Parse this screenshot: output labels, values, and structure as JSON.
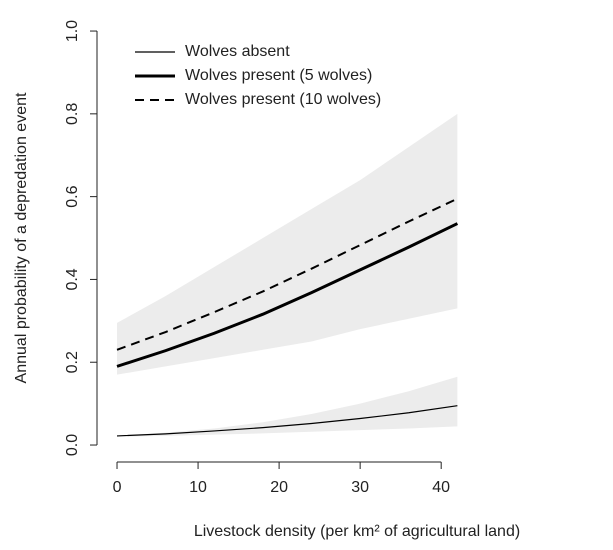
{
  "chart_data": {
    "type": "line",
    "xlabel": "Livestock density (per km² of agricultural land)",
    "ylabel": "Annual probability of a depredation event",
    "x": [
      0,
      6,
      12,
      18,
      24,
      30,
      36,
      42
    ],
    "series": [
      {
        "name": "Wolves absent",
        "color": "#000000",
        "width": 1.2,
        "dash": false,
        "values": [
          0.022,
          0.027,
          0.034,
          0.042,
          0.052,
          0.064,
          0.078,
          0.095
        ]
      },
      {
        "name": "Wolves present (5 wolves)",
        "color": "#000000",
        "width": 3,
        "dash": false,
        "values": [
          0.19,
          0.228,
          0.27,
          0.316,
          0.368,
          0.423,
          0.478,
          0.535
        ]
      },
      {
        "name": "Wolves present (10 wolves)",
        "color": "#000000",
        "width": 2,
        "dash": true,
        "values": [
          0.23,
          0.273,
          0.321,
          0.371,
          0.426,
          0.483,
          0.54,
          0.595
        ]
      }
    ],
    "bands": [
      {
        "color": "#ececec",
        "lower": [
          0.02,
          0.022,
          0.025,
          0.028,
          0.032,
          0.036,
          0.04,
          0.045
        ],
        "upper": [
          0.022,
          0.03,
          0.04,
          0.055,
          0.075,
          0.1,
          0.13,
          0.165
        ]
      },
      {
        "color": "#ececec",
        "lower": [
          0.17,
          0.19,
          0.21,
          0.23,
          0.25,
          0.28,
          0.305,
          0.33
        ],
        "upper": [
          0.295,
          0.36,
          0.43,
          0.5,
          0.57,
          0.64,
          0.72,
          0.8
        ]
      }
    ],
    "xlim": [
      -2.47,
      61.2
    ],
    "ylim": [
      -0.041,
      1.046
    ],
    "xticks": [
      0,
      10,
      20,
      30,
      40
    ],
    "yticks": [
      {
        "value": 0,
        "label": "0.0"
      },
      0.2,
      0.4,
      0.6,
      0.8,
      {
        "value": 1,
        "label": "1.0"
      }
    ],
    "legend": "top-left"
  }
}
